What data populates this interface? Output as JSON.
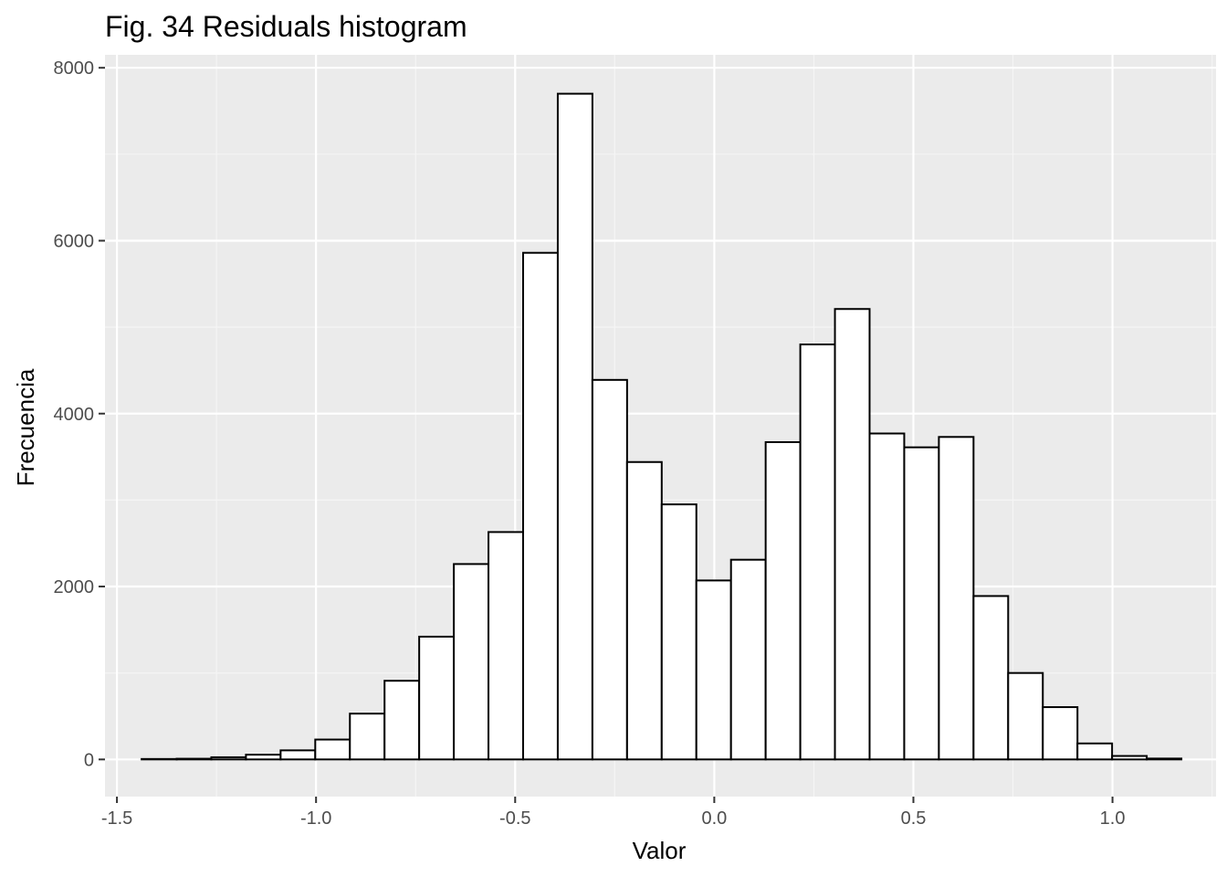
{
  "chart_data": {
    "type": "bar",
    "title": "Fig. 34 Residuals histogram",
    "xlabel": "Valor",
    "ylabel": "Frecuencia",
    "xlim": [
      -1.53,
      1.26
    ],
    "ylim": [
      -430,
      8150
    ],
    "x_ticks": [
      -1.5,
      -1.0,
      -0.5,
      0.0,
      0.5,
      1.0
    ],
    "x_tick_labels": [
      "-1.5",
      "-1.0",
      "-0.5",
      "0.0",
      "0.5",
      "1.0"
    ],
    "y_ticks": [
      0,
      2000,
      4000,
      6000,
      8000
    ],
    "y_tick_labels": [
      "0",
      "2000",
      "4000",
      "6000",
      "8000"
    ],
    "grid": true,
    "legend": "none",
    "bins": [
      {
        "x0": -1.438,
        "x1": -1.35,
        "count": 5
      },
      {
        "x0": -1.35,
        "x1": -1.263,
        "count": 8
      },
      {
        "x0": -1.263,
        "x1": -1.176,
        "count": 25
      },
      {
        "x0": -1.176,
        "x1": -1.089,
        "count": 55
      },
      {
        "x0": -1.089,
        "x1": -1.002,
        "count": 105
      },
      {
        "x0": -1.002,
        "x1": -0.915,
        "count": 230
      },
      {
        "x0": -0.915,
        "x1": -0.828,
        "count": 530
      },
      {
        "x0": -0.828,
        "x1": -0.741,
        "count": 910
      },
      {
        "x0": -0.741,
        "x1": -0.654,
        "count": 1420
      },
      {
        "x0": -0.654,
        "x1": -0.567,
        "count": 2260
      },
      {
        "x0": -0.567,
        "x1": -0.48,
        "count": 2630
      },
      {
        "x0": -0.48,
        "x1": -0.393,
        "count": 5860
      },
      {
        "x0": -0.393,
        "x1": -0.306,
        "count": 7700
      },
      {
        "x0": -0.306,
        "x1": -0.219,
        "count": 4390
      },
      {
        "x0": -0.219,
        "x1": -0.132,
        "count": 3440
      },
      {
        "x0": -0.132,
        "x1": -0.045,
        "count": 2950
      },
      {
        "x0": -0.045,
        "x1": 0.042,
        "count": 2070
      },
      {
        "x0": 0.042,
        "x1": 0.129,
        "count": 2310
      },
      {
        "x0": 0.129,
        "x1": 0.216,
        "count": 3670
      },
      {
        "x0": 0.216,
        "x1": 0.303,
        "count": 4800
      },
      {
        "x0": 0.303,
        "x1": 0.39,
        "count": 5210
      },
      {
        "x0": 0.39,
        "x1": 0.477,
        "count": 3770
      },
      {
        "x0": 0.477,
        "x1": 0.564,
        "count": 3610
      },
      {
        "x0": 0.564,
        "x1": 0.651,
        "count": 3730
      },
      {
        "x0": 0.651,
        "x1": 0.738,
        "count": 1890
      },
      {
        "x0": 0.738,
        "x1": 0.825,
        "count": 1000
      },
      {
        "x0": 0.825,
        "x1": 0.912,
        "count": 605
      },
      {
        "x0": 0.912,
        "x1": 0.999,
        "count": 185
      },
      {
        "x0": 0.999,
        "x1": 1.086,
        "count": 40
      },
      {
        "x0": 1.086,
        "x1": 1.173,
        "count": 10
      }
    ],
    "colors": {
      "panel_background": "#ebebeb",
      "grid_major": "#ffffff",
      "grid_minor": "#f5f5f5",
      "bar_fill": "#ffffff",
      "bar_stroke": "#000000",
      "tick_text": "#4d4d4d",
      "tick_mark": "#333333"
    }
  }
}
